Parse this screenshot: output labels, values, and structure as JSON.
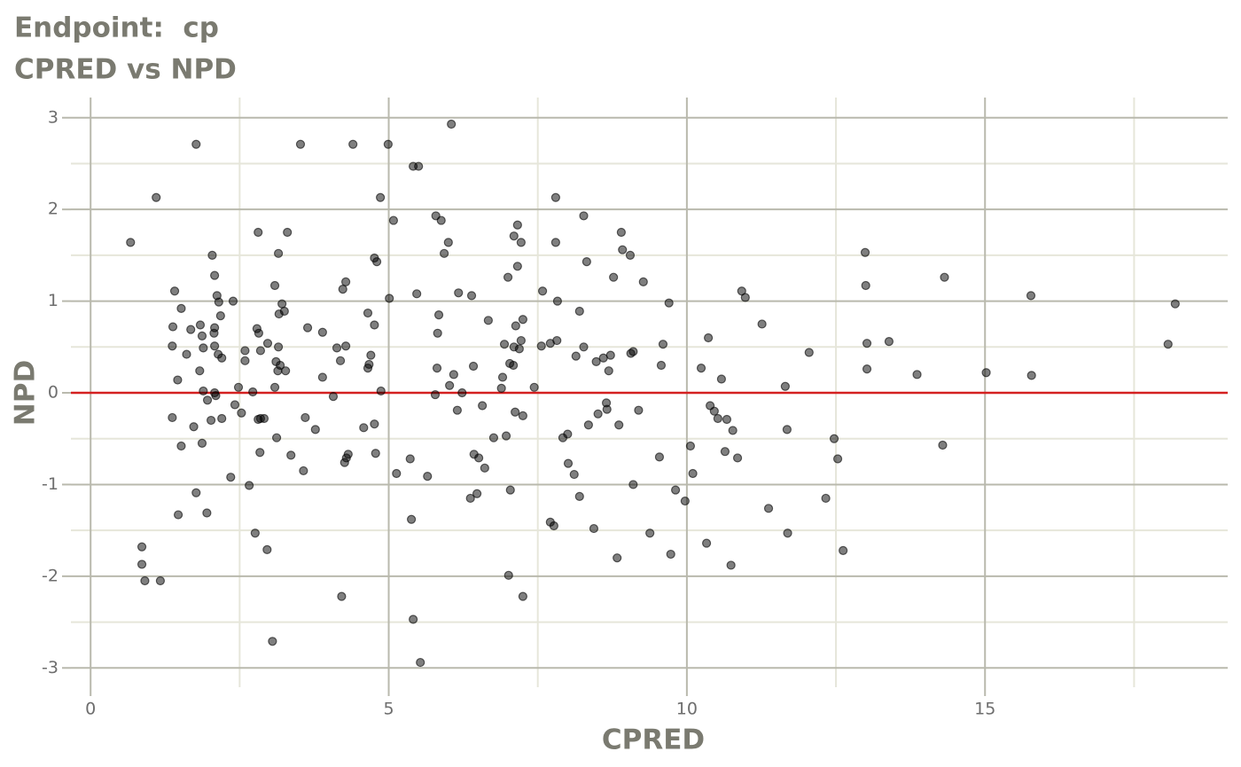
{
  "chart_data": {
    "type": "scatter",
    "title": "Endpoint:  cp",
    "subtitle": "CPRED vs NPD",
    "xlabel": "CPRED",
    "ylabel": "NPD",
    "xlim": [
      -0.33,
      19.07
    ],
    "ylim": [
      -3.21,
      3.22
    ],
    "xticks": [
      0,
      5,
      10,
      15
    ],
    "yticks": [
      -3,
      -2,
      -1,
      0,
      1,
      2,
      3
    ],
    "grid": true,
    "color": "#000000",
    "hline": {
      "value": 0,
      "color": "#d42020"
    },
    "x": [
      0.67,
      1.1,
      1.77,
      0.86,
      0.86,
      0.91,
      1.17,
      1.41,
      1.38,
      1.37,
      1.37,
      1.46,
      1.52,
      1.52,
      1.47,
      1.61,
      1.68,
      1.73,
      1.77,
      1.83,
      1.84,
      1.87,
      1.89,
      1.89,
      1.87,
      1.95,
      1.96,
      2.04,
      2.02,
      2.08,
      2.07,
      2.08,
      2.08,
      2.08,
      2.1,
      2.12,
      2.14,
      2.15,
      2.18,
      2.2,
      2.2,
      2.39,
      2.35,
      2.42,
      2.48,
      2.53,
      2.59,
      2.59,
      2.66,
      2.72,
      2.76,
      2.81,
      2.79,
      2.82,
      2.81,
      2.85,
      2.84,
      2.85,
      2.91,
      2.96,
      2.97,
      3.05,
      3.09,
      3.09,
      3.11,
      3.12,
      3.14,
      3.15,
      3.15,
      3.16,
      3.18,
      3.21,
      3.25,
      3.27,
      3.3,
      3.36,
      3.52,
      3.57,
      3.6,
      3.64,
      3.77,
      3.89,
      3.89,
      4.07,
      4.13,
      4.19,
      4.21,
      4.23,
      4.26,
      4.28,
      4.28,
      4.29,
      4.32,
      4.4,
      4.58,
      4.65,
      4.65,
      4.67,
      4.7,
      4.76,
      4.76,
      4.76,
      4.78,
      4.8,
      4.86,
      4.87,
      4.99,
      5.01,
      5.08,
      5.13,
      5.36,
      5.38,
      5.41,
      5.41,
      5.47,
      5.5,
      5.53,
      5.65,
      5.78,
      5.79,
      5.81,
      5.82,
      5.84,
      5.88,
      5.93,
      6.0,
      6.02,
      6.05,
      6.09,
      6.15,
      6.17,
      6.23,
      6.37,
      6.39,
      6.42,
      6.43,
      6.48,
      6.51,
      6.57,
      6.61,
      6.67,
      6.76,
      6.89,
      6.91,
      6.94,
      6.97,
      7.0,
      7.01,
      7.03,
      7.04,
      7.09,
      7.1,
      7.1,
      7.12,
      7.13,
      7.16,
      7.16,
      7.19,
      7.22,
      7.22,
      7.25,
      7.25,
      7.25,
      7.44,
      7.56,
      7.58,
      7.71,
      7.71,
      7.77,
      7.8,
      7.8,
      7.82,
      7.83,
      7.92,
      8.0,
      8.01,
      8.11,
      8.14,
      8.2,
      8.2,
      8.27,
      8.27,
      8.32,
      8.35,
      8.44,
      8.48,
      8.51,
      8.6,
      8.65,
      8.66,
      8.69,
      8.72,
      8.77,
      8.83,
      8.86,
      8.9,
      8.92,
      9.05,
      9.06,
      9.1,
      9.1,
      9.19,
      9.27,
      9.38,
      9.54,
      9.57,
      9.6,
      9.7,
      9.73,
      9.81,
      9.97,
      10.06,
      10.1,
      10.24,
      10.33,
      10.36,
      10.39,
      10.46,
      10.52,
      10.58,
      10.64,
      10.67,
      10.74,
      10.77,
      10.85,
      10.92,
      10.98,
      11.26,
      11.37,
      11.65,
      11.68,
      11.69,
      12.05,
      12.33,
      12.47,
      12.53,
      12.62,
      12.99,
      13.0,
      13.02,
      13.02,
      13.39,
      13.86,
      14.29,
      14.32,
      15.02,
      15.77,
      15.78,
      18.07,
      18.19
    ],
    "values": [
      1.64,
      2.13,
      2.71,
      -1.68,
      -1.87,
      -2.05,
      -2.05,
      1.11,
      0.72,
      0.51,
      -0.27,
      0.14,
      0.92,
      -0.58,
      -1.33,
      0.42,
      0.69,
      -0.37,
      -1.09,
      0.24,
      0.74,
      0.62,
      0.49,
      0.02,
      -0.55,
      -1.31,
      -0.08,
      1.5,
      -0.3,
      1.28,
      0.65,
      0.71,
      0.51,
      0.0,
      -0.03,
      1.06,
      0.42,
      0.99,
      0.84,
      0.38,
      -0.28,
      1.0,
      -0.92,
      -0.13,
      0.06,
      -0.22,
      0.46,
      0.35,
      -1.01,
      0.01,
      -1.53,
      1.75,
      0.7,
      0.65,
      -0.29,
      0.46,
      -0.65,
      -0.28,
      -0.28,
      -1.71,
      0.54,
      -2.71,
      1.17,
      0.06,
      0.34,
      -0.49,
      0.24,
      0.5,
      1.52,
      0.86,
      0.3,
      0.97,
      0.89,
      0.24,
      1.75,
      -0.68,
      2.71,
      -0.85,
      -0.27,
      0.71,
      -0.4,
      0.66,
      0.17,
      -0.04,
      0.49,
      0.35,
      -2.22,
      1.13,
      -0.76,
      1.21,
      0.51,
      -0.71,
      -0.67,
      2.71,
      -0.38,
      0.87,
      0.27,
      0.31,
      0.41,
      1.47,
      0.74,
      -0.34,
      -0.66,
      1.43,
      2.13,
      0.02,
      2.71,
      1.03,
      1.88,
      -0.88,
      -0.72,
      -1.38,
      -2.47,
      2.47,
      1.08,
      2.47,
      -2.94,
      -0.91,
      -0.02,
      1.93,
      0.27,
      0.65,
      0.85,
      1.88,
      1.52,
      1.64,
      0.08,
      2.93,
      0.2,
      -0.19,
      1.09,
      0.0,
      -1.15,
      1.06,
      0.29,
      -0.67,
      -1.1,
      -0.71,
      -0.14,
      -0.82,
      0.79,
      -0.49,
      0.05,
      0.17,
      0.53,
      -0.47,
      1.26,
      -1.99,
      0.32,
      -1.06,
      0.3,
      0.5,
      1.71,
      -0.21,
      0.73,
      1.83,
      1.38,
      0.48,
      1.64,
      0.57,
      -2.22,
      -0.25,
      0.8,
      0.06,
      0.51,
      1.11,
      -1.41,
      0.54,
      -1.45,
      1.64,
      2.13,
      0.57,
      1.0,
      -0.49,
      -0.45,
      -0.77,
      -0.89,
      0.4,
      0.89,
      -1.13,
      0.5,
      1.93,
      1.43,
      -0.35,
      -1.48,
      0.34,
      -0.23,
      0.38,
      -0.11,
      -0.18,
      0.24,
      0.41,
      1.26,
      -1.8,
      -0.35,
      1.75,
      1.56,
      1.5,
      0.43,
      0.45,
      -1.0,
      -0.19,
      1.21,
      -1.53,
      -0.7,
      0.3,
      0.53,
      0.98,
      -1.76,
      -1.06,
      -1.18,
      -0.58,
      -0.88,
      0.27,
      -1.64,
      0.6,
      -0.14,
      -0.2,
      -0.28,
      0.15,
      -0.64,
      -0.29,
      -1.88,
      -0.41,
      -0.71,
      1.11,
      1.04,
      0.75,
      -1.26,
      0.07,
      -0.4,
      -1.53,
      0.44,
      -1.15,
      -0.5,
      -0.72,
      -1.72,
      1.53,
      1.17,
      0.54,
      0.26,
      0.56,
      0.2,
      -0.57,
      1.26,
      0.22,
      1.06,
      0.19,
      0.53,
      0.97
    ]
  }
}
